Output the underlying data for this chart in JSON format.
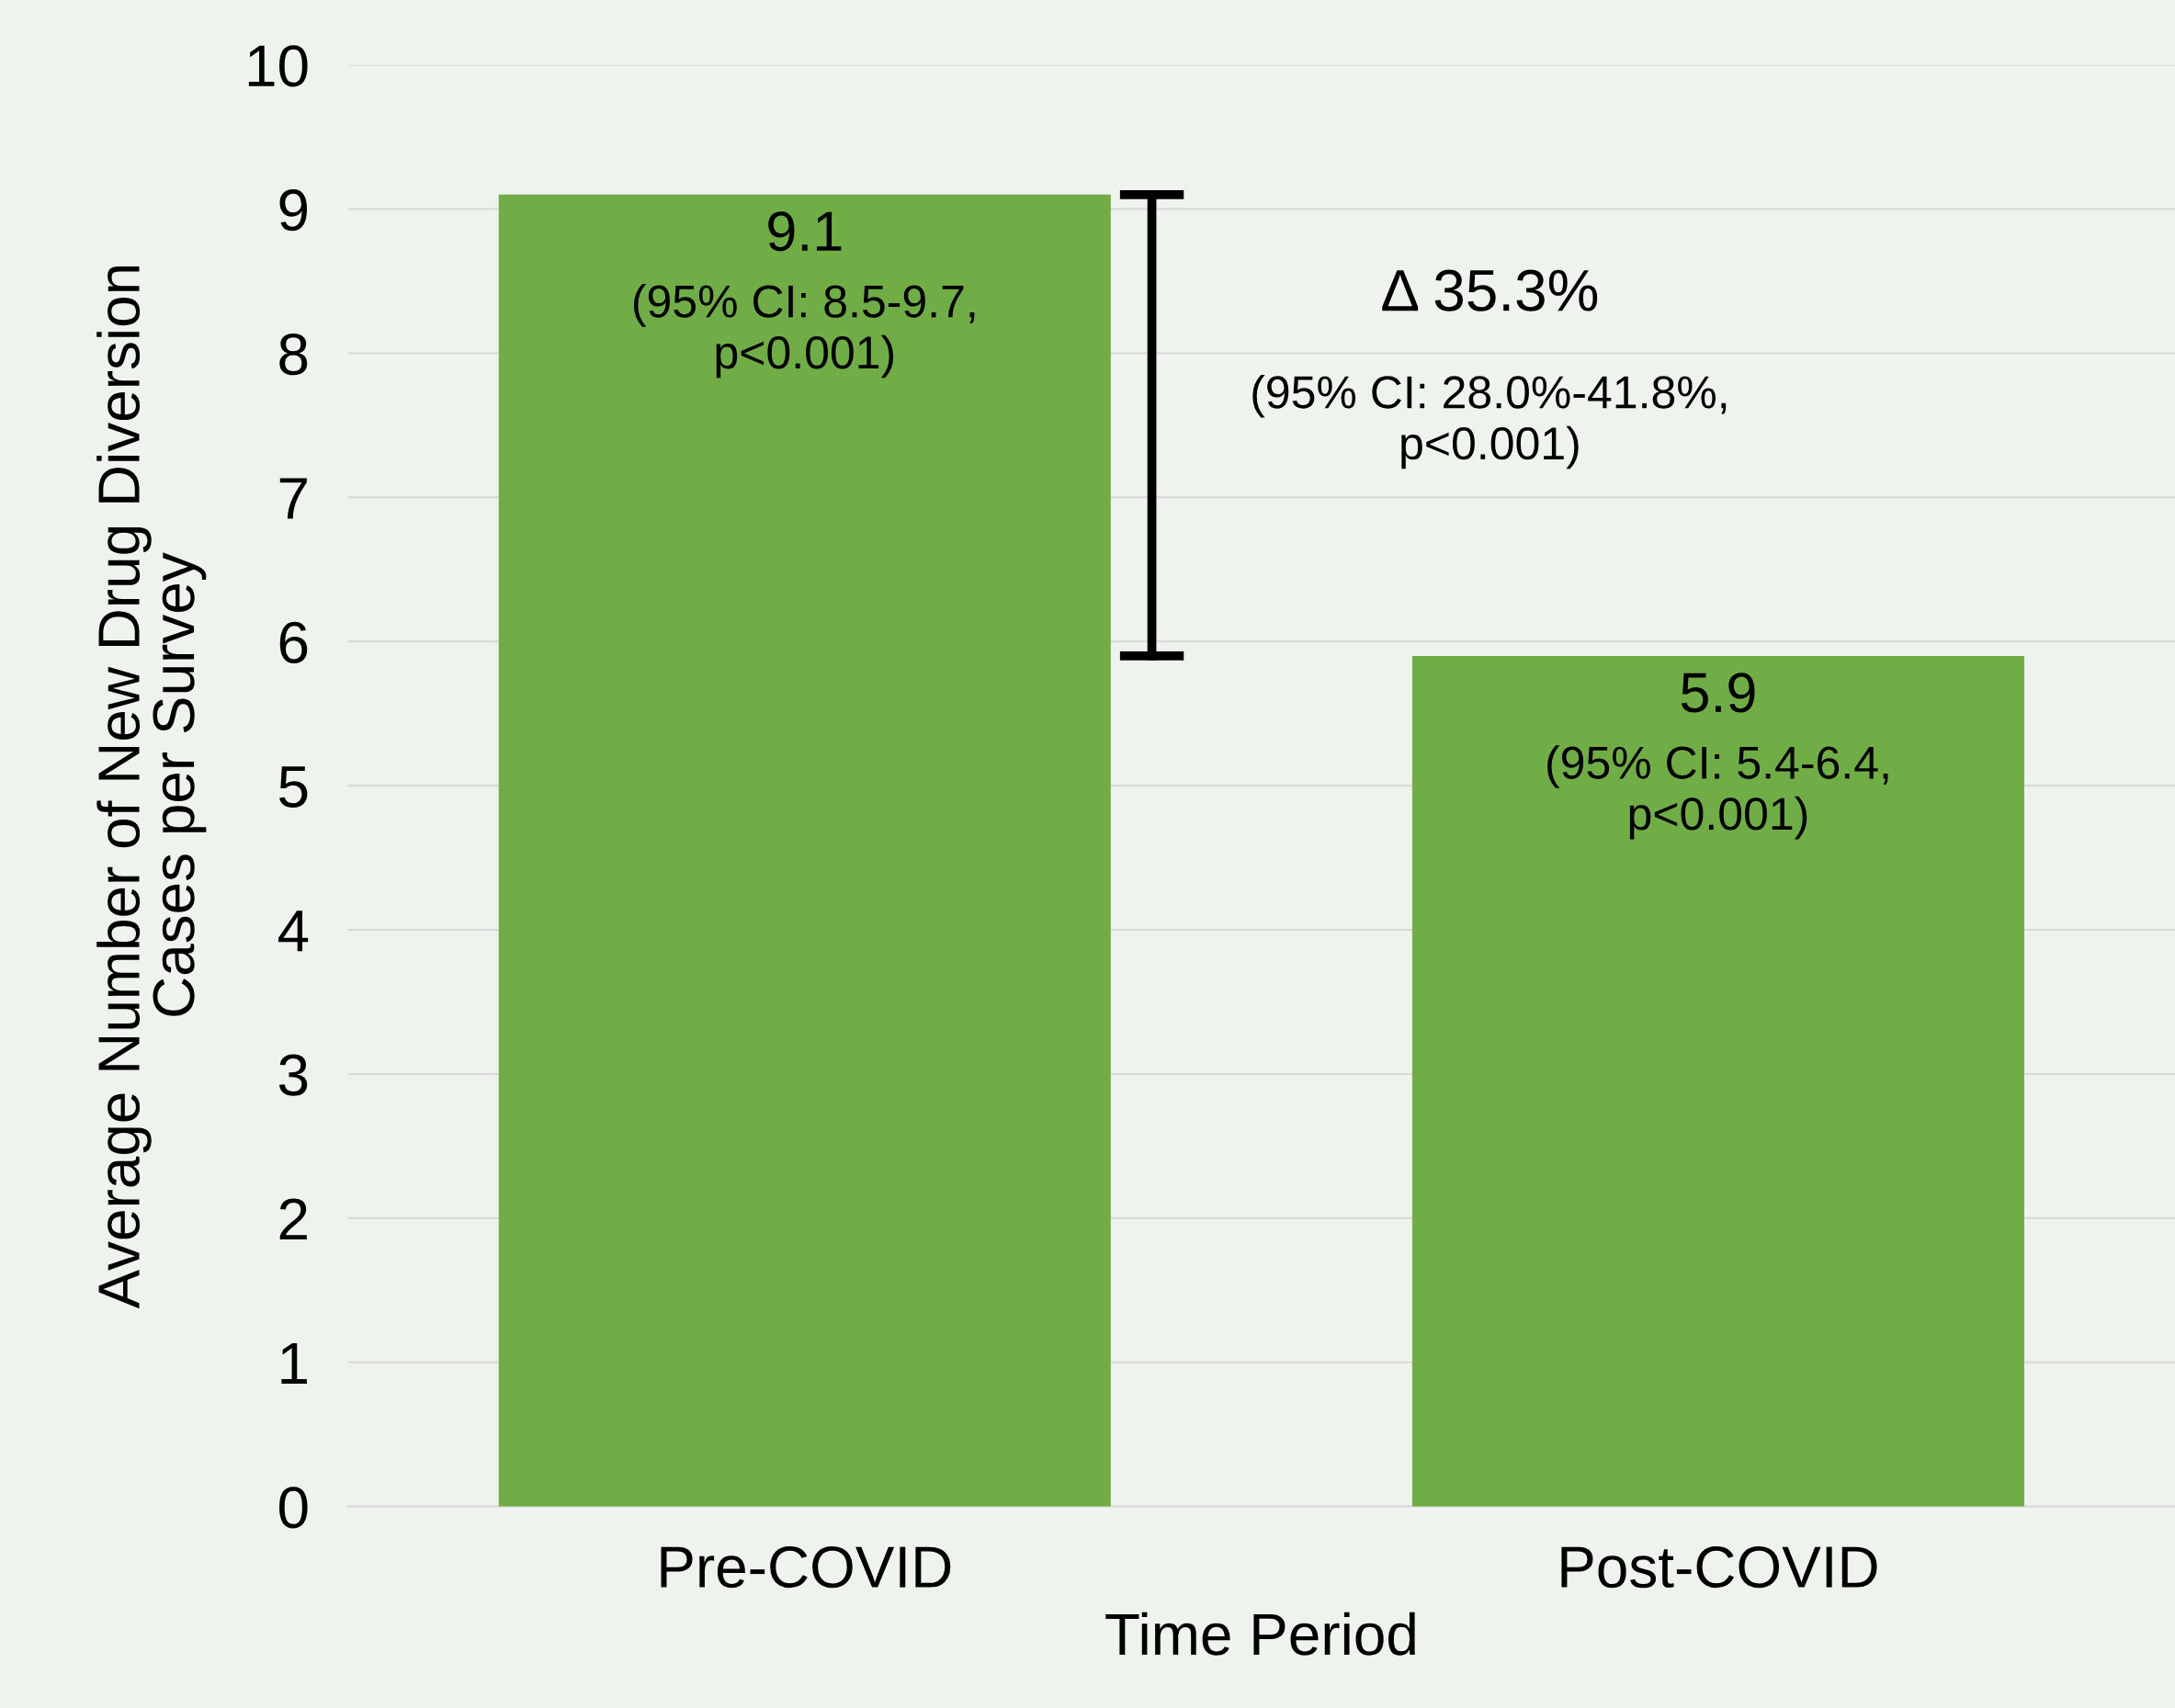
{
  "chart_data": {
    "type": "bar",
    "xlabel": "Time Period",
    "ylabel": "Average Number of New Drug Diversion\nCases per Survey",
    "categories": [
      "Pre-COVID",
      "Post-COVID"
    ],
    "values": [
      9.1,
      5.9
    ],
    "color": "#70ad47",
    "ylim": [
      0,
      10
    ],
    "yticks": [
      0,
      1,
      2,
      3,
      4,
      5,
      6,
      7,
      8,
      9,
      10
    ],
    "grid": "y",
    "data_labels": true,
    "annotations": [
      {
        "text": "(95% CI: 8.5-9.7,\np<0.001)",
        "x": "Pre-COVID",
        "y": 9.1
      },
      {
        "text": "(95% CI: 5.4-6.4,\np<0.001)",
        "x": "Post-COVID",
        "y": 5.9
      },
      "Δ 35.3%",
      "(95% CI: 28.0%-41.8%,\np<0.001)"
    ]
  }
}
